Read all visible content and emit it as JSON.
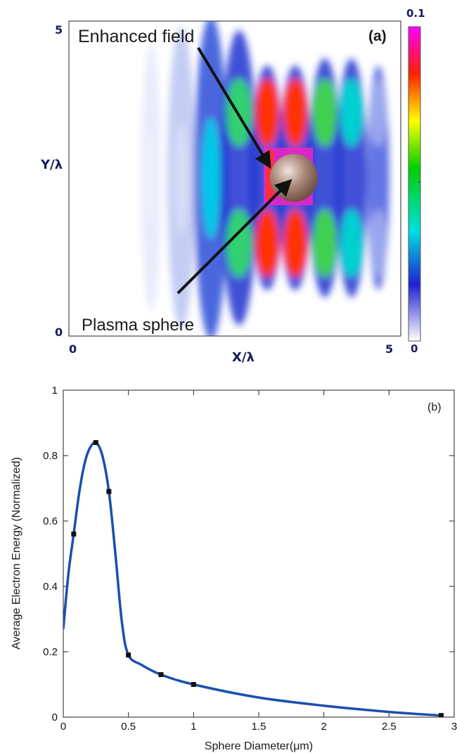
{
  "chart_data": [
    {
      "type": "heatmap",
      "panel_label": "(a)",
      "xlabel": "X/λ",
      "ylabel": "Y/λ",
      "x_ticks": [
        "0",
        "5"
      ],
      "y_ticks": [
        "0",
        "5"
      ],
      "xlim": [
        0,
        5
      ],
      "ylim": [
        0,
        5
      ],
      "colorbar": {
        "max_label": "0.1",
        "min_label": "0",
        "range": [
          0,
          0.1
        ],
        "colors": [
          "#ffffff",
          "#1010c0",
          "#00e0e0",
          "#00d000",
          "#ffff00",
          "#ff2000",
          "#ff00ff"
        ]
      },
      "annotations": [
        "Enhanced field",
        "Plasma sphere"
      ],
      "colors": {
        "sphere": "#a08070",
        "axis_text": "#1a1a5e"
      }
    },
    {
      "type": "line",
      "panel_label": "(b)",
      "xlabel": "Sphere Diameter(μm)",
      "ylabel": "Average Electron Energy (Normalized)",
      "xlim": [
        0,
        3
      ],
      "ylim": [
        0,
        1
      ],
      "x_ticks": [
        0,
        0.5,
        1,
        1.5,
        2,
        2.5,
        3
      ],
      "y_ticks": [
        0,
        0.2,
        0.4,
        0.6,
        0.8,
        1
      ],
      "x_tick_labels": [
        "0",
        "0.5",
        "1",
        "1.5",
        "2",
        "2.5",
        "3"
      ],
      "y_tick_labels": [
        "0",
        "0.2",
        "0.4",
        "0.6",
        "0.8",
        "1"
      ],
      "points": {
        "x": [
          0.08,
          0.25,
          0.35,
          0.5,
          0.75,
          1.0,
          2.9
        ],
        "y": [
          0.56,
          0.84,
          0.69,
          0.19,
          0.13,
          0.1,
          0.005
        ]
      },
      "curve": {
        "x": [
          0.0,
          0.04,
          0.08,
          0.12,
          0.16,
          0.2,
          0.25,
          0.3,
          0.35,
          0.4,
          0.45,
          0.5,
          0.6,
          0.75,
          1.0,
          1.5,
          2.0,
          2.5,
          2.9
        ],
        "y": [
          0.27,
          0.44,
          0.56,
          0.68,
          0.77,
          0.82,
          0.84,
          0.8,
          0.69,
          0.5,
          0.29,
          0.19,
          0.16,
          0.13,
          0.1,
          0.06,
          0.035,
          0.016,
          0.005
        ]
      },
      "colors": {
        "line": "#1a4fae",
        "marker": "#111111"
      }
    }
  ]
}
